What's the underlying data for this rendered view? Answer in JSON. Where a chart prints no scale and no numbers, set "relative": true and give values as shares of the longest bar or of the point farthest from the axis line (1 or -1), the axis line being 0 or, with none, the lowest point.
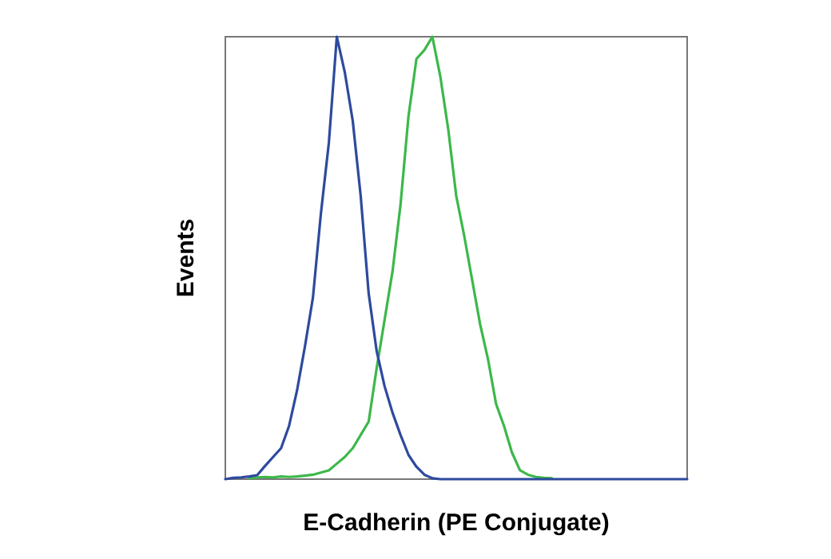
{
  "chart_data": {
    "type": "line",
    "relative": true,
    "xlabel": "E-Cadherin (PE Conjugate)",
    "ylabel": "Events",
    "grid": false,
    "legend": false,
    "categories": [
      null,
      null,
      null,
      null,
      null,
      null,
      null,
      null,
      null,
      null,
      null,
      null,
      null,
      null,
      null,
      null,
      null,
      null,
      null,
      null,
      null,
      null,
      null,
      null,
      null,
      null,
      null,
      null,
      null,
      null,
      null,
      null,
      null,
      null,
      null,
      null,
      null,
      null,
      null,
      null,
      null,
      null,
      null,
      null,
      null,
      null,
      null,
      null,
      null,
      null,
      null,
      null,
      null,
      null,
      null,
      null,
      null,
      null,
      null
    ],
    "series": [
      {
        "color": "#2e4a9e",
        "values": [
          0,
          0.003,
          0.004,
          0.006,
          0.009,
          0.03,
          0.05,
          0.07,
          0.12,
          0.2,
          0.3,
          0.41,
          0.6,
          0.76,
          1.0,
          0.92,
          0.81,
          0.64,
          0.42,
          0.29,
          0.21,
          0.15,
          0.1,
          0.055,
          0.028,
          0.01,
          0.002,
          0,
          0,
          0,
          0,
          0,
          0,
          0,
          0,
          0,
          0,
          0,
          0,
          0,
          0,
          0,
          0,
          0,
          0,
          0,
          0,
          0,
          0,
          0,
          0,
          0,
          0,
          0,
          0,
          0,
          0,
          0,
          0
        ]
      },
      {
        "color": "#3cb84a",
        "values": [
          null,
          null,
          null,
          0.002,
          0.004,
          0.005,
          0.004,
          0.006,
          0.005,
          0.006,
          0.008,
          0.01,
          0.015,
          0.02,
          0.035,
          0.05,
          0.07,
          0.1,
          0.13,
          0.25,
          0.36,
          0.47,
          0.62,
          0.82,
          0.95,
          0.97,
          1.0,
          0.91,
          0.79,
          0.64,
          0.55,
          0.45,
          0.35,
          0.27,
          0.17,
          0.12,
          0.06,
          0.02,
          0.01,
          0.005,
          0.003,
          0.002,
          null,
          null,
          null,
          null,
          null,
          null,
          null,
          null,
          null,
          null,
          null,
          null,
          null,
          null,
          null,
          null,
          null
        ]
      }
    ]
  }
}
